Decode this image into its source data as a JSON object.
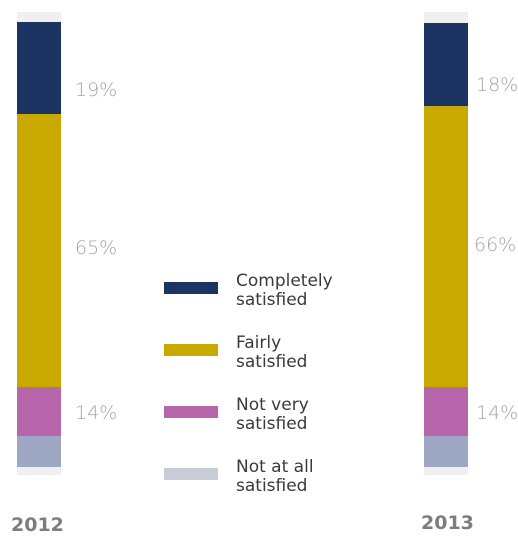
{
  "chart_data": {
    "type": "bar",
    "stacked": true,
    "orientation": "vertical",
    "categories": [
      "2012",
      "2013"
    ],
    "series": [
      {
        "name": "Completely satisfied",
        "color": "#1c3461",
        "values": [
          19,
          18
        ],
        "labels": [
          "19%",
          "18%"
        ]
      },
      {
        "name": "Fairly satisfied",
        "color": "#c9a800",
        "values": [
          65,
          66
        ],
        "labels": [
          "65%",
          "66%"
        ]
      },
      {
        "name": "Not very satisfied",
        "color": "#b766ab",
        "values": [
          14,
          14
        ],
        "labels": [
          "14%",
          "14%"
        ]
      },
      {
        "name": "Not at all satisfied",
        "color": "#9ea8c4",
        "values": [
          6,
          6
        ],
        "labels": [
          "",
          ""
        ]
      }
    ],
    "legend": {
      "placement": "center",
      "items": [
        {
          "line1": "Completely",
          "line2": "satisfied",
          "color": "#1c3461"
        },
        {
          "line1": "Fairly",
          "line2": "satisfied",
          "color": "#c9a800"
        },
        {
          "line1": "Not very",
          "line2": "satisfied",
          "color": "#b766ab"
        },
        {
          "line1": "Not at all",
          "line2": "satisfied",
          "color": "#c8ccd9"
        }
      ]
    }
  }
}
